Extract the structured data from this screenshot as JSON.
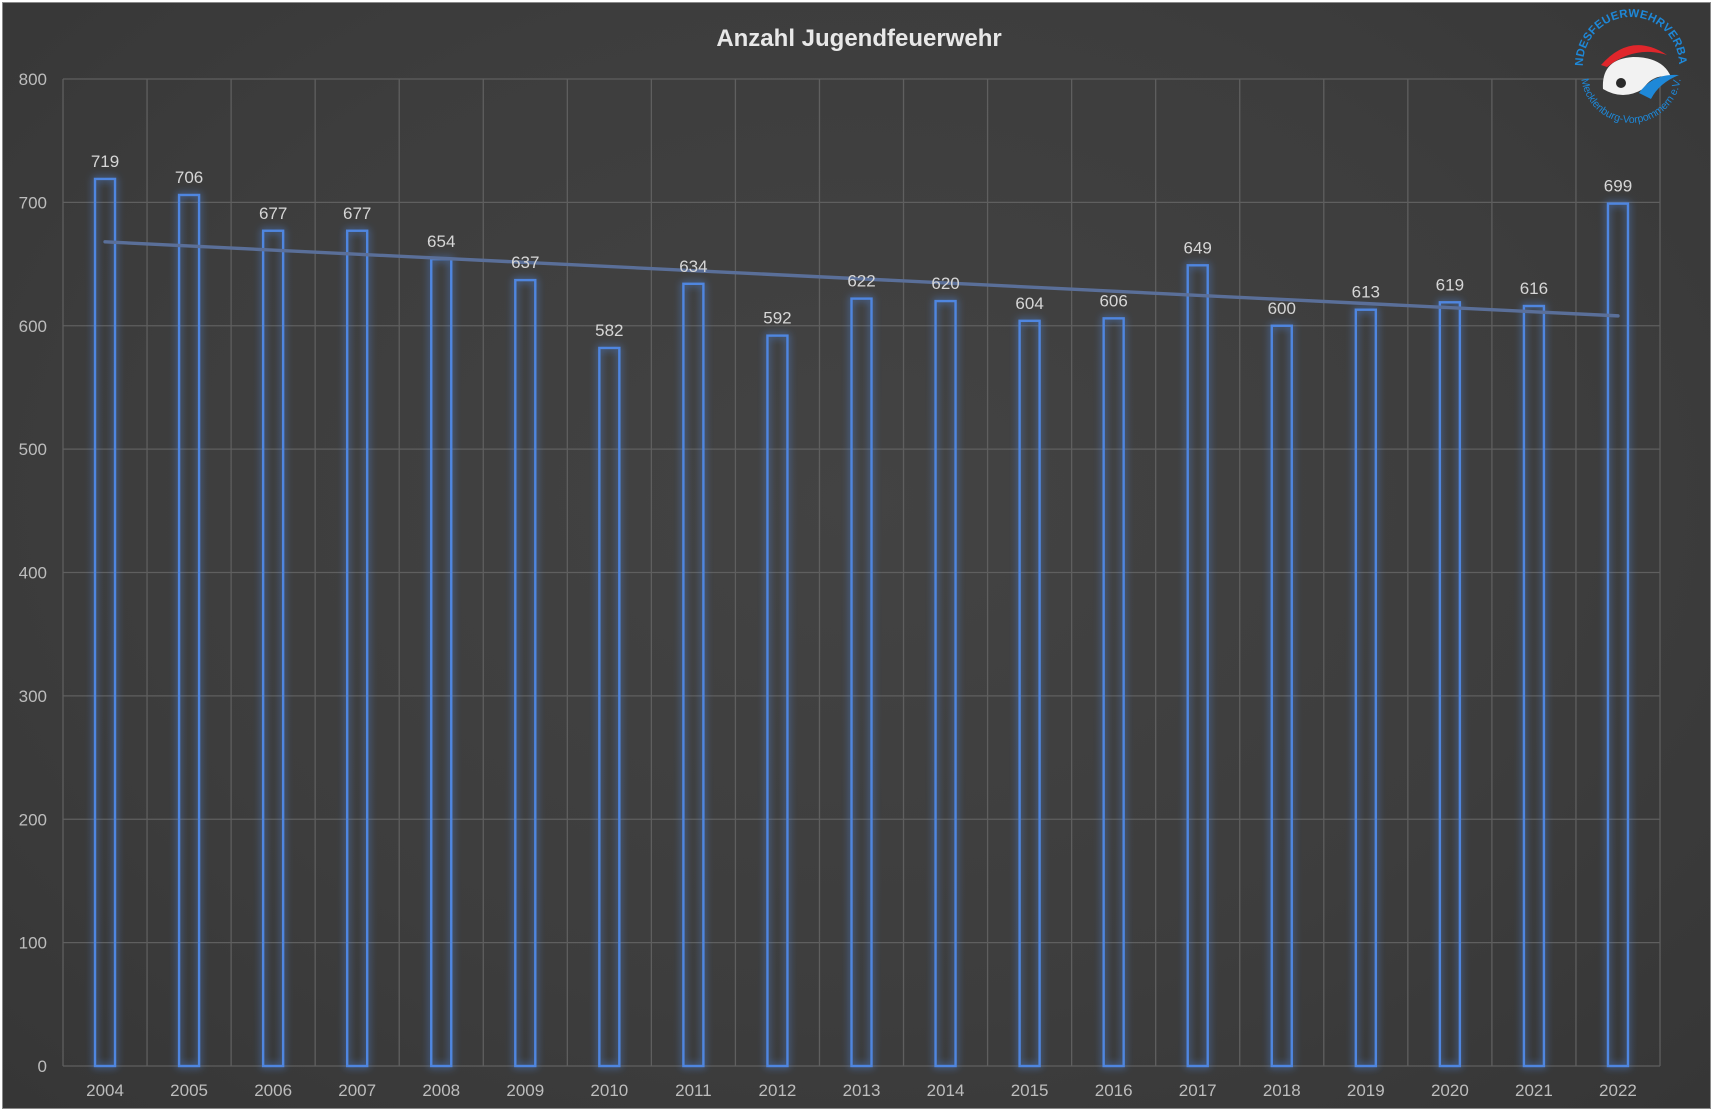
{
  "chart_data": {
    "type": "bar",
    "title": "Anzahl Jugendfeuerwehr",
    "categories": [
      "2004",
      "2005",
      "2006",
      "2007",
      "2008",
      "2009",
      "2010",
      "2011",
      "2012",
      "2013",
      "2014",
      "2015",
      "2016",
      "2017",
      "2018",
      "2019",
      "2020",
      "2021",
      "2022"
    ],
    "values": [
      719,
      706,
      677,
      677,
      654,
      637,
      582,
      634,
      592,
      622,
      620,
      604,
      606,
      649,
      600,
      613,
      619,
      616,
      699
    ],
    "data_labels": [
      "719",
      "706",
      "677",
      "677",
      "654",
      "637",
      "582",
      "634",
      "592",
      "622",
      "620",
      "604",
      "606",
      "649",
      "600",
      "613",
      "619",
      "616",
      "699"
    ],
    "ylim": [
      0,
      800
    ],
    "yticks": [
      "0",
      "100",
      "200",
      "300",
      "400",
      "500",
      "600",
      "700",
      "800"
    ],
    "ytick_values": [
      0,
      100,
      200,
      300,
      400,
      500,
      600,
      700,
      800
    ],
    "trendline": {
      "type": "linear",
      "from_category": "2004",
      "to_category": "2022",
      "start_value": 668,
      "end_value": 608
    },
    "grid": true,
    "legend": "none",
    "colors": {
      "bar_outline": "#4f86e0",
      "bar_glow": "#3a6fd0",
      "trendline": "#5a6f99",
      "background": "#404040",
      "gridline": "#5f5f5f"
    }
  },
  "logo": {
    "top_text": "LANDESFEUERWEHRVERBAND",
    "bottom_text": "Mecklenburg-Vorpommern e.V.",
    "colors": {
      "blue": "#1e88d8",
      "red": "#e0262b"
    }
  }
}
